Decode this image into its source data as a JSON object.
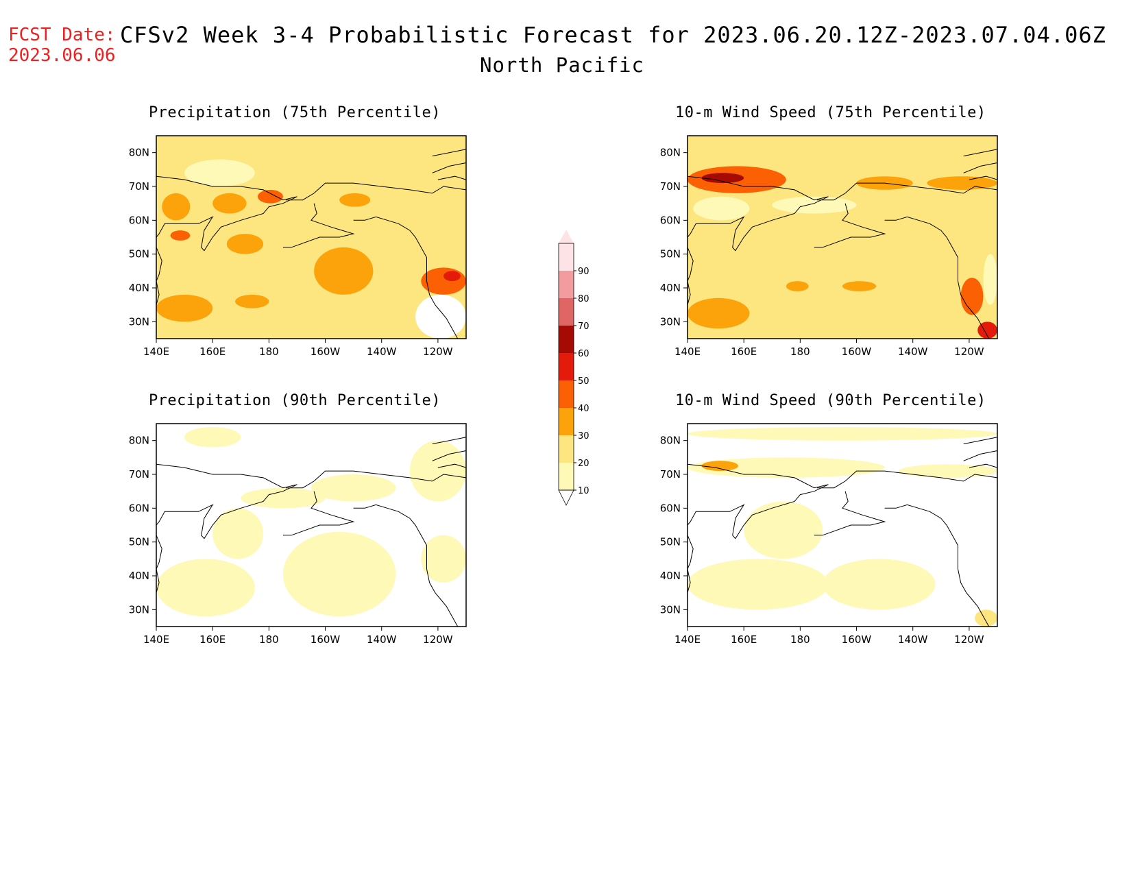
{
  "header": {
    "fcst_label": "FCST Date:",
    "fcst_date": "2023.06.06",
    "title": "CFSv2 Week 3-4 Probabilistic Forecast for 2023.06.20.12Z-2023.07.04.06Z",
    "region": "North Pacific"
  },
  "panels": [
    {
      "title": "Precipitation (75th Percentile)",
      "variable": "precipitation",
      "percentile": 75
    },
    {
      "title": "10-m Wind Speed (75th Percentile)",
      "variable": "wind",
      "percentile": 75
    },
    {
      "title": "Precipitation (90th Percentile)",
      "variable": "precipitation",
      "percentile": 90
    },
    {
      "title": "10-m Wind Speed (90th Percentile)",
      "variable": "wind",
      "percentile": 90
    }
  ],
  "axes": {
    "x_ticks": [
      "140E",
      "160E",
      "180",
      "160W",
      "140W",
      "120W"
    ],
    "y_ticks": [
      "80N",
      "70N",
      "60N",
      "50N",
      "40N",
      "30N"
    ],
    "lon_range": [
      140,
      250
    ],
    "lat_range": [
      25,
      85
    ]
  },
  "colorbar": {
    "levels": [
      "10",
      "20",
      "30",
      "40",
      "50",
      "60",
      "70",
      "80",
      "90"
    ],
    "colors": [
      "#fff9b8",
      "#fde680",
      "#fca30c",
      "#fb6004",
      "#e41a0a",
      "#a50a04",
      "#e06666",
      "#f29ca0",
      "#fde3e6"
    ]
  },
  "chart_data": {
    "type": "heatmap",
    "title": "CFSv2 Week 3-4 Probabilistic Forecast for 2023.06.20.12Z-2023.07.04.06Z",
    "subtitle": "North Pacific",
    "xlabel": "",
    "ylabel": "",
    "x_ticks": [
      "140E",
      "160E",
      "180",
      "160W",
      "140W",
      "120W"
    ],
    "y_ticks": [
      "80N",
      "70N",
      "60N",
      "50N",
      "40N",
      "30N"
    ],
    "color_levels": [
      10,
      20,
      30,
      40,
      50,
      60,
      70,
      80,
      90
    ],
    "panels": [
      {
        "title": "Precipitation (75th Percentile)",
        "background_level": 20,
        "regions": [
          {
            "lon": [
              142,
              152
            ],
            "lat": [
              60,
              68
            ],
            "level": 30
          },
          {
            "lon": [
              160,
              172
            ],
            "lat": [
              62,
              68
            ],
            "level": 30
          },
          {
            "lon": [
              176,
              185
            ],
            "lat": [
              65,
              69
            ],
            "level": 40
          },
          {
            "lon": [
              145,
              152
            ],
            "lat": [
              54,
              57
            ],
            "level": 40
          },
          {
            "lon": [
              165,
              178
            ],
            "lat": [
              50,
              56
            ],
            "level": 30
          },
          {
            "lon": [
              196,
              217
            ],
            "lat": [
              38,
              52
            ],
            "level": 30
          },
          {
            "lon": [
              205,
              216
            ],
            "lat": [
              64,
              68
            ],
            "level": 30
          },
          {
            "lon": [
              140,
              160
            ],
            "lat": [
              30,
              38
            ],
            "level": 30
          },
          {
            "lon": [
              168,
              180
            ],
            "lat": [
              34,
              38
            ],
            "level": 30
          },
          {
            "lon": [
              234,
              250
            ],
            "lat": [
              38,
              46
            ],
            "level": 40
          },
          {
            "lon": [
              242,
              248
            ],
            "lat": [
              42,
              45
            ],
            "level": 50
          },
          {
            "lon": [
              150,
              175
            ],
            "lat": [
              70,
              78
            ],
            "level": 10
          },
          {
            "lon": [
              232,
              250
            ],
            "lat": [
              25,
              38
            ],
            "level": 0
          }
        ]
      },
      {
        "title": "10-m Wind Speed (75th Percentile)",
        "background_level": 20,
        "regions": [
          {
            "lon": [
              140,
              175
            ],
            "lat": [
              68,
              76
            ],
            "level": 40
          },
          {
            "lon": [
              145,
              160
            ],
            "lat": [
              71,
              74
            ],
            "level": 60
          },
          {
            "lon": [
              200,
              220
            ],
            "lat": [
              69,
              73
            ],
            "level": 30
          },
          {
            "lon": [
              225,
              250
            ],
            "lat": [
              69,
              73
            ],
            "level": 30
          },
          {
            "lon": [
              142,
              162
            ],
            "lat": [
              60,
              67
            ],
            "level": 10
          },
          {
            "lon": [
              170,
              200
            ],
            "lat": [
              62,
              67
            ],
            "level": 10
          },
          {
            "lon": [
              140,
              162
            ],
            "lat": [
              28,
              37
            ],
            "level": 30
          },
          {
            "lon": [
              175,
              183
            ],
            "lat": [
              39,
              42
            ],
            "level": 30
          },
          {
            "lon": [
              195,
              207
            ],
            "lat": [
              39,
              42
            ],
            "level": 30
          },
          {
            "lon": [
              237,
              245
            ],
            "lat": [
              32,
              43
            ],
            "level": 40
          },
          {
            "lon": [
              243,
              250
            ],
            "lat": [
              25,
              30
            ],
            "level": 50
          },
          {
            "lon": [
              245,
              250
            ],
            "lat": [
              35,
              50
            ],
            "level": 10
          }
        ]
      },
      {
        "title": "Precipitation (90th Percentile)",
        "background_level": 0,
        "regions": [
          {
            "lon": [
              140,
              175
            ],
            "lat": [
              28,
              45
            ],
            "level": 10
          },
          {
            "lon": [
              160,
              178
            ],
            "lat": [
              45,
              60
            ],
            "level": 10
          },
          {
            "lon": [
              185,
              225
            ],
            "lat": [
              28,
              53
            ],
            "level": 10
          },
          {
            "lon": [
              150,
              170
            ],
            "lat": [
              78,
              84
            ],
            "level": 10
          },
          {
            "lon": [
              230,
              250
            ],
            "lat": [
              62,
              80
            ],
            "level": 10
          },
          {
            "lon": [
              234,
              250
            ],
            "lat": [
              38,
              52
            ],
            "level": 10
          },
          {
            "lon": [
              195,
              225
            ],
            "lat": [
              62,
              70
            ],
            "level": 10
          },
          {
            "lon": [
              170,
              200
            ],
            "lat": [
              60,
              66
            ],
            "level": 10
          }
        ]
      },
      {
        "title": "10-m Wind Speed (90th Percentile)",
        "background_level": 0,
        "regions": [
          {
            "lon": [
              140,
              210
            ],
            "lat": [
              69,
              75
            ],
            "level": 10
          },
          {
            "lon": [
              145,
              158
            ],
            "lat": [
              71,
              74
            ],
            "level": 30
          },
          {
            "lon": [
              215,
              250
            ],
            "lat": [
              69,
              73
            ],
            "level": 10
          },
          {
            "lon": [
              140,
              250
            ],
            "lat": [
              80,
              84
            ],
            "level": 10
          },
          {
            "lon": [
              140,
              190
            ],
            "lat": [
              30,
              45
            ],
            "level": 10
          },
          {
            "lon": [
              160,
              188
            ],
            "lat": [
              45,
              62
            ],
            "level": 10
          },
          {
            "lon": [
              188,
              228
            ],
            "lat": [
              30,
              45
            ],
            "level": 10
          },
          {
            "lon": [
              242,
              250
            ],
            "lat": [
              25,
              30
            ],
            "level": 20
          }
        ]
      }
    ]
  }
}
